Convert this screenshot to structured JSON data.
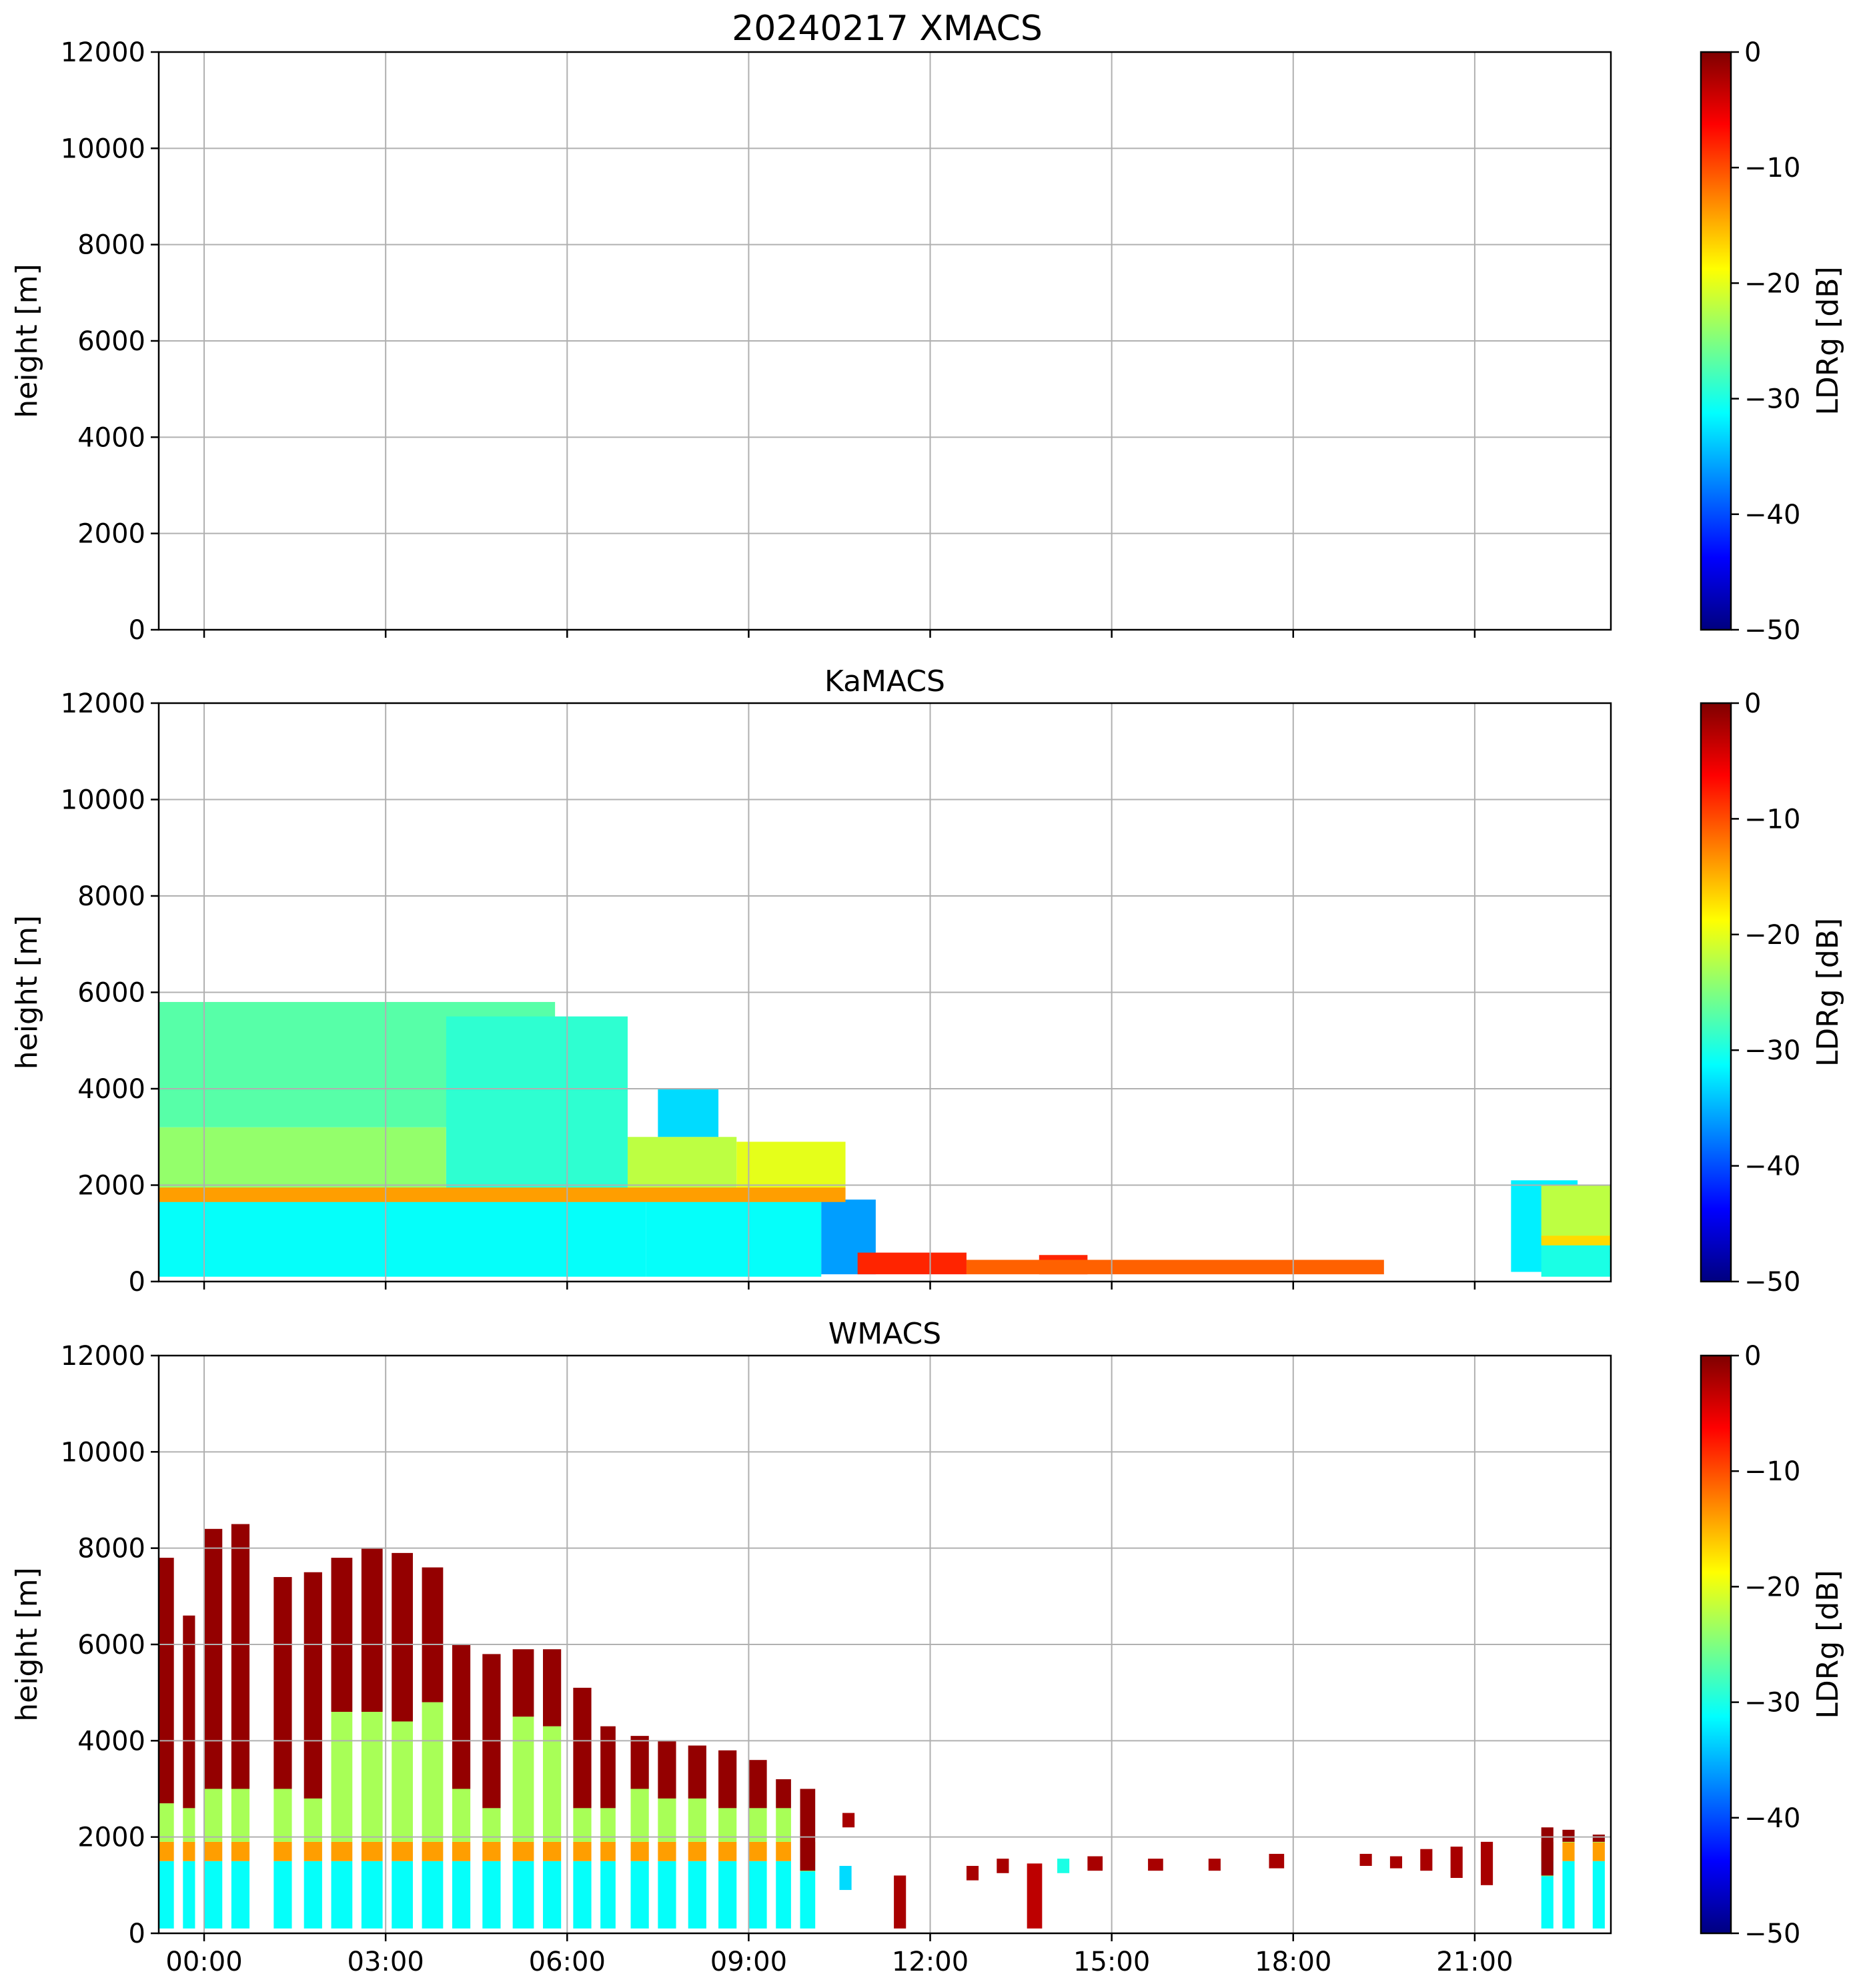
{
  "figure": {
    "title": "20240217 XMACS"
  },
  "chart_data": [
    {
      "type": "heatmap",
      "title": "20240217 XMACS",
      "xlabel": "",
      "ylabel": "height [m]",
      "xlim": [
        "23:15",
        "23:15 +1d"
      ],
      "ylim": [
        0,
        12000
      ],
      "xticks": [
        "00:00",
        "03:00",
        "06:00",
        "09:00",
        "12:00",
        "15:00",
        "18:00",
        "21:00"
      ],
      "xticks_visible": false,
      "yticks": [
        "0",
        "2000",
        "4000",
        "6000",
        "8000",
        "10000",
        "12000"
      ],
      "grid": true,
      "colorbar": {
        "label": "LDRg [dB]",
        "range": [
          -50,
          0
        ],
        "ticks": [
          "0",
          "−10",
          "−20",
          "−30",
          "−40",
          "−50"
        ],
        "colormap": "jet"
      },
      "features": []
    },
    {
      "type": "heatmap",
      "title": "KaMACS",
      "xlabel": "",
      "ylabel": "height [m]",
      "ylim": [
        0,
        12000
      ],
      "xticks": [
        "00:00",
        "03:00",
        "06:00",
        "09:00",
        "12:00",
        "15:00",
        "18:00",
        "21:00"
      ],
      "xticks_visible": false,
      "yticks": [
        "0",
        "2000",
        "4000",
        "6000",
        "8000",
        "10000",
        "12000"
      ],
      "grid": true,
      "colorbar": {
        "label": "LDRg [dB]",
        "range": [
          -50,
          0
        ],
        "ticks": [
          "0",
          "−10",
          "−20",
          "−30",
          "−40",
          "−50"
        ],
        "colormap": "jet"
      },
      "features": [
        {
          "t0": -0.75,
          "t1": 7.3,
          "h0": 100,
          "h1": 1900,
          "ldr": -31
        },
        {
          "t0": 7.3,
          "t1": 10.2,
          "h0": 100,
          "h1": 1750,
          "ldr": -31
        },
        {
          "t0": -0.75,
          "t1": 4.0,
          "h0": 1900,
          "h1": 3200,
          "ldr": -24
        },
        {
          "t0": -0.75,
          "t1": 5.8,
          "h0": 3200,
          "h1": 5800,
          "ldr": -27
        },
        {
          "t0": 4.0,
          "t1": 7.0,
          "h0": 1900,
          "h1": 5500,
          "ldr": -29
        },
        {
          "t0": 7.0,
          "t1": 8.8,
          "h0": 1750,
          "h1": 3000,
          "ldr": -22
        },
        {
          "t0": 7.5,
          "t1": 8.5,
          "h0": 3000,
          "h1": 4000,
          "ldr": -33
        },
        {
          "t0": 8.8,
          "t1": 10.6,
          "h0": 1750,
          "h1": 2900,
          "ldr": -20
        },
        {
          "t0": 10.2,
          "t1": 11.1,
          "h0": 150,
          "h1": 1700,
          "ldr": -36
        },
        {
          "t0": -0.75,
          "t1": 10.6,
          "h0": 1650,
          "h1": 1950,
          "ldr": -14
        },
        {
          "t0": 10.8,
          "t1": 12.6,
          "h0": 150,
          "h1": 600,
          "ldr": -8
        },
        {
          "t0": 13.8,
          "t1": 14.6,
          "h0": 150,
          "h1": 550,
          "ldr": -8
        },
        {
          "t0": 12.6,
          "t1": 19.5,
          "h0": 150,
          "h1": 450,
          "ldr": -11
        },
        {
          "t0": 21.6,
          "t1": 22.7,
          "h0": 200,
          "h1": 2100,
          "ldr": -32
        },
        {
          "t0": 22.1,
          "t1": 23.25,
          "h0": 100,
          "h1": 900,
          "ldr": -30
        },
        {
          "t0": 22.1,
          "t1": 23.25,
          "h0": 900,
          "h1": 2000,
          "ldr": -22
        },
        {
          "t0": 22.1,
          "t1": 23.25,
          "h0": 750,
          "h1": 950,
          "ldr": -17
        }
      ]
    },
    {
      "type": "heatmap",
      "title": "WMACS",
      "xlabel": "",
      "ylabel": "height [m]",
      "ylim": [
        0,
        12000
      ],
      "xticks": [
        "00:00",
        "03:00",
        "06:00",
        "09:00",
        "12:00",
        "15:00",
        "18:00",
        "21:00"
      ],
      "xticks_visible": true,
      "yticks": [
        "0",
        "2000",
        "4000",
        "6000",
        "8000",
        "10000",
        "12000"
      ],
      "grid": true,
      "colorbar": {
        "label": "LDRg [dB]",
        "range": [
          -50,
          0
        ],
        "ticks": [
          "0",
          "−10",
          "−20",
          "−30",
          "−40",
          "−50"
        ],
        "colormap": "jet"
      },
      "columns": [
        {
          "t0": -0.75,
          "t1": -0.5,
          "top": 7800,
          "liq": 2700
        },
        {
          "t0": -0.35,
          "t1": -0.15,
          "top": 6600,
          "liq": 2600
        },
        {
          "t0": 0.0,
          "t1": 0.3,
          "top": 8400,
          "liq": 3000
        },
        {
          "t0": 0.45,
          "t1": 0.75,
          "top": 8500,
          "liq": 3000
        },
        {
          "t0": 1.15,
          "t1": 1.45,
          "top": 7400,
          "liq": 3000
        },
        {
          "t0": 1.65,
          "t1": 1.95,
          "top": 7500,
          "liq": 2800
        },
        {
          "t0": 2.1,
          "t1": 2.45,
          "top": 7800,
          "liq": 4600
        },
        {
          "t0": 2.6,
          "t1": 2.95,
          "top": 8000,
          "liq": 4600
        },
        {
          "t0": 3.1,
          "t1": 3.45,
          "top": 7900,
          "liq": 4400
        },
        {
          "t0": 3.6,
          "t1": 3.95,
          "top": 7600,
          "liq": 4800
        },
        {
          "t0": 4.1,
          "t1": 4.4,
          "top": 6000,
          "liq": 3000
        },
        {
          "t0": 4.6,
          "t1": 4.9,
          "top": 5800,
          "liq": 2600
        },
        {
          "t0": 5.1,
          "t1": 5.45,
          "top": 5900,
          "liq": 4500
        },
        {
          "t0": 5.6,
          "t1": 5.9,
          "top": 5900,
          "liq": 4300
        },
        {
          "t0": 6.1,
          "t1": 6.4,
          "top": 5100,
          "liq": 2600
        },
        {
          "t0": 6.55,
          "t1": 6.8,
          "top": 4300,
          "liq": 2600
        },
        {
          "t0": 7.05,
          "t1": 7.35,
          "top": 4100,
          "liq": 3000
        },
        {
          "t0": 7.5,
          "t1": 7.8,
          "top": 4000,
          "liq": 2800
        },
        {
          "t0": 8.0,
          "t1": 8.3,
          "top": 3900,
          "liq": 2800
        },
        {
          "t0": 8.5,
          "t1": 8.8,
          "top": 3800,
          "liq": 2600
        },
        {
          "t0": 9.0,
          "t1": 9.3,
          "top": 3600,
          "liq": 2600
        },
        {
          "t0": 9.45,
          "t1": 9.7,
          "top": 3200,
          "liq": 2600
        },
        {
          "t0": 9.85,
          "t1": 10.1,
          "top": 3000,
          "liq": 1300
        },
        {
          "t0": 22.1,
          "t1": 22.3,
          "top": 2200,
          "liq": 1200
        },
        {
          "t0": 22.45,
          "t1": 22.65,
          "top": 2150,
          "liq": 1900
        },
        {
          "t0": 22.95,
          "t1": 23.15,
          "top": 2050,
          "liq": 1900
        }
      ],
      "blobs": [
        {
          "t0": 10.5,
          "t1": 10.7,
          "h0": 900,
          "h1": 1400,
          "ldr": -33
        },
        {
          "t0": 10.55,
          "t1": 10.75,
          "h0": 2200,
          "h1": 2500,
          "ldr": -2
        },
        {
          "t0": 11.4,
          "t1": 11.6,
          "h0": 100,
          "h1": 1200,
          "ldr": -2
        },
        {
          "t0": 12.6,
          "t1": 12.8,
          "h0": 1100,
          "h1": 1400,
          "ldr": -2
        },
        {
          "t0": 13.1,
          "t1": 13.3,
          "h0": 1250,
          "h1": 1550,
          "ldr": -2
        },
        {
          "t0": 13.6,
          "t1": 13.85,
          "h0": 100,
          "h1": 1450,
          "ldr": -3
        },
        {
          "t0": 14.1,
          "t1": 14.3,
          "h0": 1250,
          "h1": 1550,
          "ldr": -30
        },
        {
          "t0": 14.6,
          "t1": 14.85,
          "h0": 1300,
          "h1": 1600,
          "ldr": -2
        },
        {
          "t0": 15.6,
          "t1": 15.85,
          "h0": 1300,
          "h1": 1550,
          "ldr": -2
        },
        {
          "t0": 16.6,
          "t1": 16.8,
          "h0": 1300,
          "h1": 1550,
          "ldr": -2
        },
        {
          "t0": 17.6,
          "t1": 17.85,
          "h0": 1350,
          "h1": 1650,
          "ldr": -2
        },
        {
          "t0": 19.1,
          "t1": 19.3,
          "h0": 1400,
          "h1": 1650,
          "ldr": -2
        },
        {
          "t0": 19.6,
          "t1": 19.8,
          "h0": 1350,
          "h1": 1600,
          "ldr": -2
        },
        {
          "t0": 20.1,
          "t1": 20.3,
          "h0": 1300,
          "h1": 1750,
          "ldr": -2
        },
        {
          "t0": 20.6,
          "t1": 20.8,
          "h0": 1150,
          "h1": 1800,
          "ldr": -2
        },
        {
          "t0": 21.1,
          "t1": 21.3,
          "h0": 1000,
          "h1": 1900,
          "ldr": -2
        }
      ]
    }
  ]
}
